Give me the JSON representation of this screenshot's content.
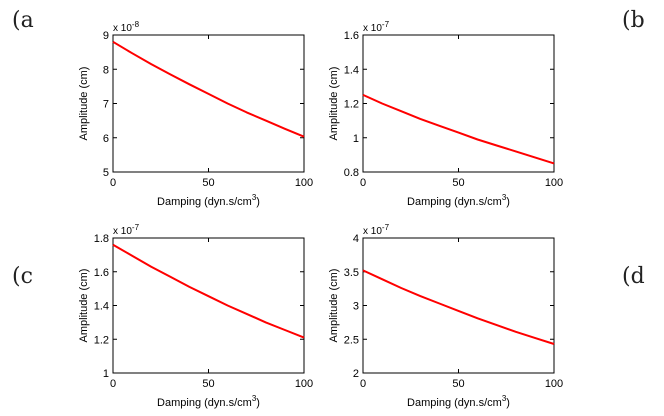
{
  "panel_labels": [
    "(a",
    "(b",
    "(c",
    "(d"
  ],
  "chart_data": [
    {
      "type": "line",
      "panel": "a",
      "title": "",
      "xlabel": "Damping (dyn.s/cm",
      "xlabel_sup": "3",
      "xlabel_close": ")",
      "ylabel": "Amplitude (cm)",
      "exponent_label": "x 10",
      "exponent_power": "-8",
      "xlim": [
        0,
        100
      ],
      "ylim": [
        5,
        9
      ],
      "xticks": [
        0,
        50,
        100
      ],
      "yticks": [
        5,
        6,
        7,
        8,
        9
      ],
      "grid": false,
      "color": "#ff0000",
      "x": [
        0,
        10,
        20,
        30,
        40,
        50,
        60,
        70,
        80,
        90,
        100
      ],
      "y": [
        8.8,
        8.47,
        8.15,
        7.85,
        7.56,
        7.28,
        7.0,
        6.74,
        6.5,
        6.26,
        6.03
      ]
    },
    {
      "type": "line",
      "panel": "b",
      "title": "",
      "xlabel": "Damping (dyn.s/cm",
      "xlabel_sup": "3",
      "xlabel_close": ")",
      "ylabel": "Amplitude (cm)",
      "exponent_label": "x 10",
      "exponent_power": "-7",
      "xlim": [
        0,
        100
      ],
      "ylim": [
        0.8,
        1.6
      ],
      "xticks": [
        0,
        50,
        100
      ],
      "yticks": [
        0.8,
        1,
        1.2,
        1.4,
        1.6
      ],
      "ytick_labels": [
        "0.8",
        "1",
        "1.2",
        "1.4",
        "1.6"
      ],
      "grid": false,
      "color": "#ff0000",
      "x": [
        0,
        10,
        20,
        30,
        40,
        50,
        60,
        70,
        80,
        90,
        100
      ],
      "y": [
        1.25,
        1.2,
        1.155,
        1.11,
        1.07,
        1.03,
        0.99,
        0.955,
        0.92,
        0.885,
        0.85
      ]
    },
    {
      "type": "line",
      "panel": "c",
      "title": "",
      "xlabel": "Damping (dyn.s/cm",
      "xlabel_sup": "3",
      "xlabel_close": ")",
      "ylabel": "Amplitude (cm)",
      "exponent_label": "x 10",
      "exponent_power": "-7",
      "xlim": [
        0,
        100
      ],
      "ylim": [
        1,
        1.8
      ],
      "xticks": [
        0,
        50,
        100
      ],
      "yticks": [
        1,
        1.2,
        1.4,
        1.6,
        1.8
      ],
      "ytick_labels": [
        "1",
        "1.2",
        "1.4",
        "1.6",
        "1.8"
      ],
      "grid": false,
      "color": "#ff0000",
      "x": [
        0,
        10,
        20,
        30,
        40,
        50,
        60,
        70,
        80,
        90,
        100
      ],
      "y": [
        1.76,
        1.695,
        1.63,
        1.57,
        1.51,
        1.455,
        1.4,
        1.35,
        1.3,
        1.255,
        1.21
      ]
    },
    {
      "type": "line",
      "panel": "d",
      "title": "",
      "xlabel": "Damping (dyn.s/cm",
      "xlabel_sup": "3",
      "xlabel_close": ")",
      "ylabel": "Amplitude (cm)",
      "exponent_label": "x 10",
      "exponent_power": "-7",
      "xlim": [
        0,
        100
      ],
      "ylim": [
        2,
        4
      ],
      "xticks": [
        0,
        50,
        100
      ],
      "yticks": [
        2,
        2.5,
        3,
        3.5,
        4
      ],
      "ytick_labels": [
        "2",
        "2.5",
        "3",
        "3.5",
        "4"
      ],
      "grid": false,
      "color": "#ff0000",
      "x": [
        0,
        10,
        20,
        30,
        40,
        50,
        60,
        70,
        80,
        90,
        100
      ],
      "y": [
        3.52,
        3.39,
        3.26,
        3.14,
        3.03,
        2.92,
        2.81,
        2.71,
        2.61,
        2.52,
        2.43
      ]
    }
  ]
}
